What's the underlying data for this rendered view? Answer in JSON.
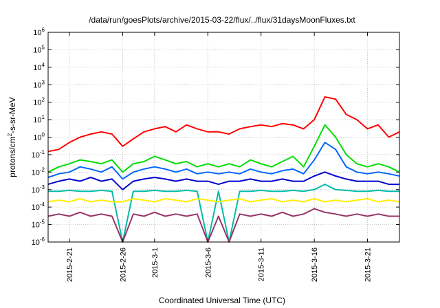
{
  "chart_data": {
    "type": "line",
    "title": "/data/run/goesPlots/archive/2015-03-22/flux/../flux/31daysMoonFluxes.txt",
    "xlabel": "Coordinated Universal Time (UTC)",
    "ylabel": {
      "prefix": "protons/cm",
      "sup": "2",
      "suffix": "-s-sr-MeV"
    },
    "y_scale": "log",
    "ylim": [
      1e-06,
      1000000.0
    ],
    "y_ticks": [
      {
        "base": "10",
        "exp": "-6"
      },
      {
        "base": "10",
        "exp": "-5"
      },
      {
        "base": "10",
        "exp": "-4"
      },
      {
        "base": "10",
        "exp": "-3"
      },
      {
        "base": "10",
        "exp": "-2"
      },
      {
        "base": "10",
        "exp": "-1"
      },
      {
        "base": "10",
        "exp": "0"
      },
      {
        "base": "10",
        "exp": "1"
      },
      {
        "base": "10",
        "exp": "2"
      },
      {
        "base": "10",
        "exp": "3"
      },
      {
        "base": "10",
        "exp": "4"
      },
      {
        "base": "10",
        "exp": "5"
      },
      {
        "base": "10",
        "exp": "6"
      }
    ],
    "xlim": [
      "2015-02-19",
      "2015-03-24"
    ],
    "x_ticks": [
      "2015-2-21",
      "2015-2-26",
      "2015-3-1",
      "2015-3-6",
      "2015-3-11",
      "2015-3-16",
      "2015-3-21"
    ],
    "grid": true,
    "series": [
      {
        "color": "#ff0000",
        "x": [
          "2015-02-19",
          "2015-02-20",
          "2015-02-21",
          "2015-02-22",
          "2015-02-23",
          "2015-02-24",
          "2015-02-25",
          "2015-02-26",
          "2015-02-27",
          "2015-02-28",
          "2015-03-01",
          "2015-03-02",
          "2015-03-03",
          "2015-03-04",
          "2015-03-05",
          "2015-03-06",
          "2015-03-07",
          "2015-03-08",
          "2015-03-09",
          "2015-03-10",
          "2015-03-11",
          "2015-03-12",
          "2015-03-13",
          "2015-03-14",
          "2015-03-15",
          "2015-03-16",
          "2015-03-17",
          "2015-03-18",
          "2015-03-19",
          "2015-03-20",
          "2015-03-21",
          "2015-03-22",
          "2015-03-23",
          "2015-03-24"
        ],
        "y": [
          0.15,
          0.2,
          0.5,
          1,
          1.5,
          2,
          1.5,
          0.3,
          0.8,
          2,
          3,
          4,
          2,
          5,
          3,
          2,
          2,
          1.5,
          3,
          4,
          5,
          4,
          6,
          5,
          3,
          10,
          200,
          150,
          20,
          10,
          3,
          5,
          1,
          2
        ]
      },
      {
        "color": "#00dd00",
        "x": [
          "2015-02-19",
          "2015-02-20",
          "2015-02-21",
          "2015-02-22",
          "2015-02-23",
          "2015-02-24",
          "2015-02-25",
          "2015-02-26",
          "2015-02-27",
          "2015-02-28",
          "2015-03-01",
          "2015-03-02",
          "2015-03-03",
          "2015-03-04",
          "2015-03-05",
          "2015-03-06",
          "2015-03-07",
          "2015-03-08",
          "2015-03-09",
          "2015-03-10",
          "2015-03-11",
          "2015-03-12",
          "2015-03-13",
          "2015-03-14",
          "2015-03-15",
          "2015-03-16",
          "2015-03-17",
          "2015-03-18",
          "2015-03-19",
          "2015-03-20",
          "2015-03-21",
          "2015-03-22",
          "2015-03-23",
          "2015-03-24"
        ],
        "y": [
          0.01,
          0.02,
          0.03,
          0.05,
          0.04,
          0.03,
          0.05,
          0.01,
          0.03,
          0.04,
          0.08,
          0.05,
          0.03,
          0.04,
          0.02,
          0.03,
          0.02,
          0.03,
          0.02,
          0.05,
          0.03,
          0.02,
          0.04,
          0.08,
          0.02,
          0.3,
          5,
          1,
          0.1,
          0.03,
          0.02,
          0.03,
          0.02,
          0.01
        ]
      },
      {
        "color": "#0066ff",
        "x": [
          "2015-02-19",
          "2015-02-20",
          "2015-02-21",
          "2015-02-22",
          "2015-02-23",
          "2015-02-24",
          "2015-02-25",
          "2015-02-26",
          "2015-02-27",
          "2015-02-28",
          "2015-03-01",
          "2015-03-02",
          "2015-03-03",
          "2015-03-04",
          "2015-03-05",
          "2015-03-06",
          "2015-03-07",
          "2015-03-08",
          "2015-03-09",
          "2015-03-10",
          "2015-03-11",
          "2015-03-12",
          "2015-03-13",
          "2015-03-14",
          "2015-03-15",
          "2015-03-16",
          "2015-03-17",
          "2015-03-18",
          "2015-03-19",
          "2015-03-20",
          "2015-03-21",
          "2015-03-22",
          "2015-03-23",
          "2015-03-24"
        ],
        "y": [
          0.005,
          0.008,
          0.01,
          0.02,
          0.015,
          0.01,
          0.02,
          0.004,
          0.01,
          0.015,
          0.02,
          0.015,
          0.01,
          0.015,
          0.008,
          0.01,
          0.008,
          0.01,
          0.008,
          0.015,
          0.01,
          0.008,
          0.012,
          0.015,
          0.008,
          0.05,
          0.5,
          0.2,
          0.02,
          0.01,
          0.008,
          0.01,
          0.008,
          0.006
        ]
      },
      {
        "color": "#0000cc",
        "x": [
          "2015-02-19",
          "2015-02-20",
          "2015-02-21",
          "2015-02-22",
          "2015-02-23",
          "2015-02-24",
          "2015-02-25",
          "2015-02-26",
          "2015-02-27",
          "2015-02-28",
          "2015-03-01",
          "2015-03-02",
          "2015-03-03",
          "2015-03-04",
          "2015-03-05",
          "2015-03-06",
          "2015-03-07",
          "2015-03-08",
          "2015-03-09",
          "2015-03-10",
          "2015-03-11",
          "2015-03-12",
          "2015-03-13",
          "2015-03-14",
          "2015-03-15",
          "2015-03-16",
          "2015-03-17",
          "2015-03-18",
          "2015-03-19",
          "2015-03-20",
          "2015-03-21",
          "2015-03-22",
          "2015-03-23",
          "2015-03-24"
        ],
        "y": [
          0.002,
          0.003,
          0.004,
          0.003,
          0.005,
          0.003,
          0.004,
          0.001,
          0.003,
          0.004,
          0.005,
          0.004,
          0.003,
          0.004,
          0.003,
          0.003,
          0.002,
          0.003,
          0.003,
          0.004,
          0.003,
          0.003,
          0.004,
          0.003,
          0.003,
          0.006,
          0.01,
          0.006,
          0.004,
          0.003,
          0.003,
          0.003,
          0.002,
          0.002
        ]
      },
      {
        "color": "#00bbaa",
        "x": [
          "2015-02-19",
          "2015-02-20",
          "2015-02-21",
          "2015-02-22",
          "2015-02-23",
          "2015-02-24",
          "2015-02-25",
          "2015-02-26",
          "2015-02-27",
          "2015-02-28",
          "2015-03-01",
          "2015-03-02",
          "2015-03-03",
          "2015-03-04",
          "2015-03-05",
          "2015-03-06",
          "2015-03-07",
          "2015-03-08",
          "2015-03-09",
          "2015-03-10",
          "2015-03-11",
          "2015-03-12",
          "2015-03-13",
          "2015-03-14",
          "2015-03-15",
          "2015-03-16",
          "2015-03-17",
          "2015-03-18",
          "2015-03-19",
          "2015-03-20",
          "2015-03-21",
          "2015-03-22",
          "2015-03-23",
          "2015-03-24"
        ],
        "y": [
          0.0008,
          0.0008,
          0.0009,
          0.0008,
          0.0008,
          0.0009,
          0.0008,
          1e-06,
          0.0008,
          0.0008,
          0.0009,
          0.0008,
          0.0008,
          0.0009,
          0.0008,
          1e-06,
          0.0008,
          1e-06,
          0.0008,
          0.0008,
          0.0009,
          0.0008,
          0.0008,
          0.0009,
          0.0008,
          0.001,
          0.002,
          0.001,
          0.0009,
          0.0008,
          0.0008,
          0.0009,
          0.0008,
          0.0008
        ]
      },
      {
        "color": "#ffee00",
        "x": [
          "2015-02-19",
          "2015-02-20",
          "2015-02-21",
          "2015-02-22",
          "2015-02-23",
          "2015-02-24",
          "2015-02-25",
          "2015-02-26",
          "2015-02-27",
          "2015-02-28",
          "2015-03-01",
          "2015-03-02",
          "2015-03-03",
          "2015-03-04",
          "2015-03-05",
          "2015-03-06",
          "2015-03-07",
          "2015-03-08",
          "2015-03-09",
          "2015-03-10",
          "2015-03-11",
          "2015-03-12",
          "2015-03-13",
          "2015-03-14",
          "2015-03-15",
          "2015-03-16",
          "2015-03-17",
          "2015-03-18",
          "2015-03-19",
          "2015-03-20",
          "2015-03-21",
          "2015-03-22",
          "2015-03-23",
          "2015-03-24"
        ],
        "y": [
          0.0002,
          0.00025,
          0.0002,
          0.0003,
          0.0002,
          0.00025,
          0.0002,
          0.0002,
          0.0003,
          0.00025,
          0.0002,
          0.0003,
          0.00025,
          0.0002,
          0.0003,
          0.00025,
          0.0002,
          0.00025,
          0.0003,
          0.0002,
          0.00025,
          0.0003,
          0.0002,
          0.00025,
          0.0002,
          0.0003,
          0.0002,
          0.00025,
          0.0002,
          0.00025,
          0.0003,
          0.0002,
          0.00025,
          0.0002
        ]
      },
      {
        "color": "#993366",
        "x": [
          "2015-02-19",
          "2015-02-20",
          "2015-02-21",
          "2015-02-22",
          "2015-02-23",
          "2015-02-24",
          "2015-02-25",
          "2015-02-26",
          "2015-02-27",
          "2015-02-28",
          "2015-03-01",
          "2015-03-02",
          "2015-03-03",
          "2015-03-04",
          "2015-03-05",
          "2015-03-06",
          "2015-03-07",
          "2015-03-08",
          "2015-03-09",
          "2015-03-10",
          "2015-03-11",
          "2015-03-12",
          "2015-03-13",
          "2015-03-14",
          "2015-03-15",
          "2015-03-16",
          "2015-03-17",
          "2015-03-18",
          "2015-03-19",
          "2015-03-20",
          "2015-03-21",
          "2015-03-22",
          "2015-03-23",
          "2015-03-24"
        ],
        "y": [
          3e-05,
          4e-05,
          3e-05,
          5e-05,
          3e-05,
          4e-05,
          3e-05,
          1e-06,
          4e-05,
          3e-05,
          5e-05,
          3e-05,
          4e-05,
          3e-05,
          4e-05,
          1e-06,
          3e-05,
          1e-06,
          4e-05,
          3e-05,
          4e-05,
          3e-05,
          5e-05,
          3e-05,
          4e-05,
          8e-05,
          5e-05,
          4e-05,
          3e-05,
          4e-05,
          3e-05,
          4e-05,
          3e-05,
          3e-05
        ]
      }
    ]
  }
}
